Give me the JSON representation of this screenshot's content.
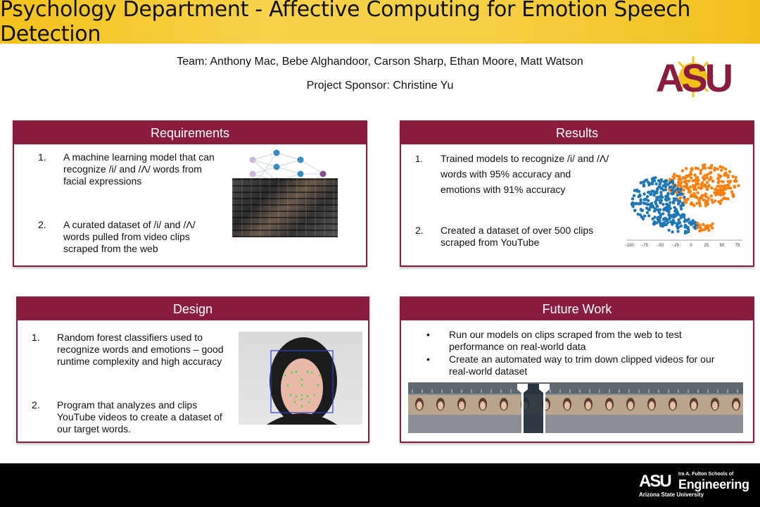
{
  "title": "Psychology Department - Affective Computing for Emotion Speech Detection",
  "team": "Team: Anthony Mac, Bebe Alghandoor, Carson Sharp, Ethan Moore, Matt Watson",
  "sponsor": "Project Sponsor: Christine Yu",
  "logo_text": "ASU",
  "colors": {
    "maroon": "#8a1c3d",
    "gold": "#f3c21a",
    "blue": "#1f77b4",
    "orange": "#ff7f0e"
  },
  "panels": {
    "requirements": {
      "heading": "Requirements",
      "items": [
        {
          "num": "1.",
          "text": "A machine learning model that can recognize /i/ and /Λ/ words from facial expressions"
        },
        {
          "num": "2.",
          "text": "A curated dataset of /i/ and /Λ/ words pulled from video clips scraped from the web"
        }
      ]
    },
    "results": {
      "heading": "Results",
      "items": [
        {
          "num": "1.",
          "text": "Trained models to recognize /i/ and /Λ/ words with 95% accuracy and emotions with 91% accuracy"
        },
        {
          "num": "2.",
          "text": "Created a dataset of over 500 clips scraped from YouTube"
        }
      ],
      "plot_ticks": [
        "−100",
        "−75",
        "−50",
        "−25",
        "0",
        "25",
        "50",
        "75"
      ]
    },
    "design": {
      "heading": "Design",
      "items": [
        {
          "num": "1.",
          "text": "Random forest classifiers used to recognize words and emotions – good runtime complexity and high accuracy"
        },
        {
          "num": "2.",
          "text": "Program that analyzes and clips YouTube videos to create a dataset of our target words."
        }
      ]
    },
    "future": {
      "heading": "Future Work",
      "items": [
        {
          "bullet": "•",
          "text": "Run our models on clips scraped from the web to test performance on real-world data"
        },
        {
          "bullet": "•",
          "text": "Create an automated way to trim down clipped videos for our real-world dataset"
        }
      ]
    }
  },
  "footer": {
    "school_line": "Ira A. Fulton Schools of",
    "school_name": "Engineering",
    "university": "Arizona State University",
    "mark": "ASU"
  }
}
